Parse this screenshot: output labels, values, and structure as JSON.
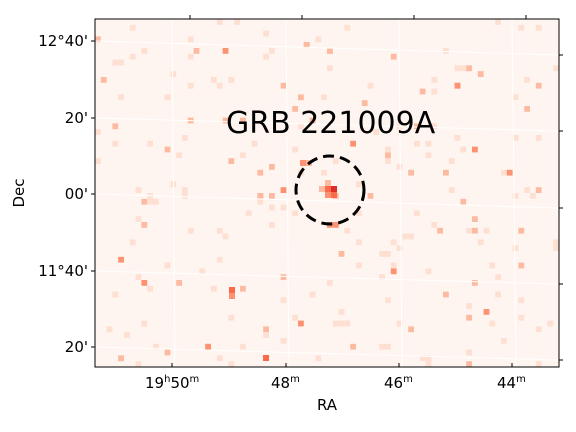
{
  "figure": {
    "annotation": "GRB 221009A",
    "xlabel": "RA",
    "ylabel": "Dec",
    "colormap": [
      "#fff5f0",
      "#fee0d2",
      "#fcbba1",
      "#fc9272",
      "#fb6a4a",
      "#de2d26"
    ],
    "grid_color": "#ffffff",
    "marker_style": "dashed-circle"
  },
  "ra_ticks": [
    {
      "h": "19",
      "hsup": "h",
      "m": "50",
      "msup": "m"
    },
    {
      "h": "",
      "hsup": "",
      "m": "48",
      "msup": "m"
    },
    {
      "h": "",
      "hsup": "",
      "m": "46",
      "msup": "m"
    },
    {
      "h": "",
      "hsup": "",
      "m": "44",
      "msup": "m"
    }
  ],
  "dec_ticks": [
    "12°40'",
    "20'",
    "00'",
    "11°40'",
    "20'"
  ]
}
